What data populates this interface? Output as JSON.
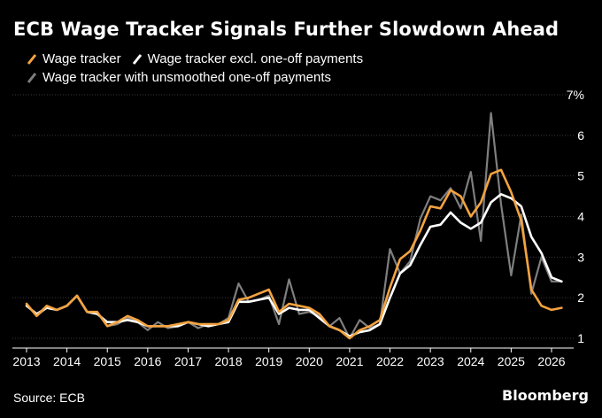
{
  "title": "ECB Wage Tracker Signals Further Slowdown Ahead",
  "source": "Source: ECB",
  "brand": "Bloomberg",
  "chart_data": {
    "type": "line",
    "title": "ECB Wage Tracker Signals Further Slowdown Ahead",
    "xlim": [
      2013.0,
      2026.4
    ],
    "ylim": [
      0.9,
      7.0
    ],
    "xticks": [
      2013,
      2014,
      2015,
      2016,
      2017,
      2018,
      2019,
      2020,
      2021,
      2022,
      2023,
      2024,
      2025,
      2026
    ],
    "xtick_labels": [
      "2013",
      "2014",
      "2015",
      "2016",
      "2017",
      "2018",
      "2019",
      "2020",
      "2021",
      "2022",
      "2023",
      "2024",
      "2025",
      "2026"
    ],
    "yticks": [
      1,
      2,
      3,
      4,
      5,
      6,
      7
    ],
    "ytick_labels": [
      "1",
      "2",
      "3",
      "4",
      "5",
      "6",
      "7%"
    ],
    "grid": "horizontal",
    "legend_position": "top-left",
    "series": [
      {
        "name": "Wage tracker with unsmoothed one-off payments",
        "color": "#7f7f7f",
        "x": [
          2013.0,
          2013.25,
          2013.5,
          2013.75,
          2014.0,
          2014.25,
          2014.5,
          2014.75,
          2015.0,
          2015.25,
          2015.5,
          2015.75,
          2016.0,
          2016.25,
          2016.5,
          2016.75,
          2017.0,
          2017.25,
          2017.5,
          2017.75,
          2018.0,
          2018.25,
          2018.5,
          2018.75,
          2019.0,
          2019.25,
          2019.5,
          2019.75,
          2020.0,
          2020.25,
          2020.5,
          2020.75,
          2021.0,
          2021.25,
          2021.5,
          2021.75,
          2022.0,
          2022.25,
          2022.5,
          2022.75,
          2023.0,
          2023.25,
          2023.5,
          2023.75,
          2024.0,
          2024.25,
          2024.5,
          2024.75,
          2025.0,
          2025.25,
          2025.5,
          2025.75,
          2026.0,
          2026.25
        ],
        "values": [
          1.85,
          1.55,
          1.75,
          1.7,
          1.8,
          2.05,
          1.65,
          1.65,
          1.3,
          1.35,
          1.5,
          1.4,
          1.2,
          1.4,
          1.25,
          1.3,
          1.4,
          1.25,
          1.35,
          1.35,
          1.5,
          2.35,
          1.9,
          1.95,
          2.05,
          1.35,
          2.45,
          1.6,
          1.65,
          1.55,
          1.3,
          1.5,
          1.0,
          1.45,
          1.25,
          1.35,
          3.2,
          2.6,
          2.9,
          3.95,
          4.5,
          4.4,
          4.7,
          4.2,
          5.1,
          3.4,
          6.55,
          4.3,
          2.55,
          4.05,
          2.1,
          3.0,
          2.4,
          2.4
        ]
      },
      {
        "name": "Wage tracker excl. one-off payments",
        "color": "#ffffff",
        "x": [
          2013.0,
          2013.25,
          2013.5,
          2013.75,
          2014.0,
          2014.25,
          2014.5,
          2014.75,
          2015.0,
          2015.25,
          2015.5,
          2015.75,
          2016.0,
          2016.25,
          2016.5,
          2016.75,
          2017.0,
          2017.25,
          2017.5,
          2017.75,
          2018.0,
          2018.25,
          2018.5,
          2018.75,
          2019.0,
          2019.25,
          2019.5,
          2019.75,
          2020.0,
          2020.25,
          2020.5,
          2020.75,
          2021.0,
          2021.25,
          2021.5,
          2021.75,
          2022.0,
          2022.25,
          2022.5,
          2022.75,
          2023.0,
          2023.25,
          2023.5,
          2023.75,
          2024.0,
          2024.25,
          2024.5,
          2024.75,
          2025.0,
          2025.25,
          2025.5,
          2025.75,
          2026.0,
          2026.25
        ],
        "values": [
          1.8,
          1.6,
          1.75,
          1.7,
          1.8,
          2.05,
          1.65,
          1.6,
          1.4,
          1.4,
          1.45,
          1.4,
          1.3,
          1.3,
          1.3,
          1.3,
          1.4,
          1.35,
          1.3,
          1.35,
          1.4,
          1.9,
          1.9,
          1.95,
          2.0,
          1.6,
          1.75,
          1.7,
          1.7,
          1.5,
          1.3,
          1.2,
          1.05,
          1.15,
          1.2,
          1.35,
          2.0,
          2.6,
          2.8,
          3.3,
          3.75,
          3.8,
          4.1,
          3.85,
          3.7,
          3.85,
          4.35,
          4.55,
          4.45,
          4.25,
          3.5,
          3.1,
          2.5,
          2.4
        ]
      },
      {
        "name": "Wage tracker",
        "color": "#f4a340",
        "x": [
          2013.0,
          2013.25,
          2013.5,
          2013.75,
          2014.0,
          2014.25,
          2014.5,
          2014.75,
          2015.0,
          2015.25,
          2015.5,
          2015.75,
          2016.0,
          2016.25,
          2016.5,
          2016.75,
          2017.0,
          2017.25,
          2017.5,
          2017.75,
          2018.0,
          2018.25,
          2018.5,
          2018.75,
          2019.0,
          2019.25,
          2019.5,
          2019.75,
          2020.0,
          2020.25,
          2020.5,
          2020.75,
          2021.0,
          2021.25,
          2021.5,
          2021.75,
          2022.0,
          2022.25,
          2022.5,
          2022.75,
          2023.0,
          2023.25,
          2023.5,
          2023.75,
          2024.0,
          2024.25,
          2024.5,
          2024.75,
          2025.0,
          2025.25,
          2025.5,
          2025.75,
          2026.0,
          2026.25
        ],
        "values": [
          1.85,
          1.55,
          1.8,
          1.7,
          1.8,
          2.05,
          1.65,
          1.65,
          1.3,
          1.4,
          1.55,
          1.45,
          1.3,
          1.3,
          1.3,
          1.35,
          1.4,
          1.35,
          1.35,
          1.35,
          1.45,
          1.95,
          2.0,
          2.1,
          2.2,
          1.65,
          1.85,
          1.8,
          1.75,
          1.6,
          1.3,
          1.2,
          1.0,
          1.2,
          1.3,
          1.45,
          2.25,
          2.95,
          3.15,
          3.65,
          4.25,
          4.2,
          4.65,
          4.5,
          4.0,
          4.35,
          5.05,
          5.15,
          4.6,
          3.9,
          2.2,
          1.8,
          1.7,
          1.75
        ]
      }
    ]
  }
}
